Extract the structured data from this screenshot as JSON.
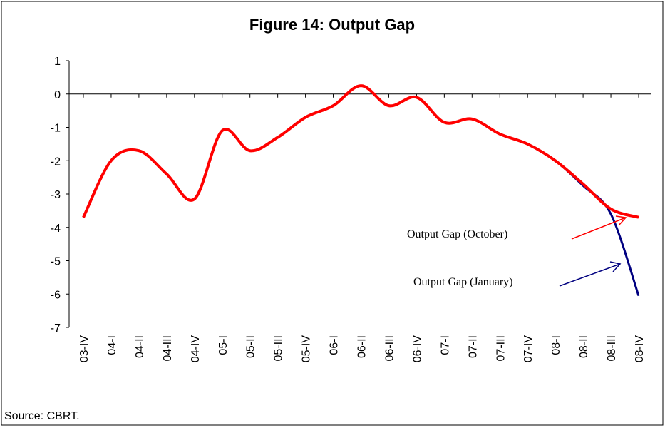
{
  "chart_data": {
    "type": "line",
    "title": "Figure 14: Output Gap",
    "source": "Source: CBRT.",
    "categories": [
      "03-IV",
      "04-I",
      "04-II",
      "04-III",
      "04-IV",
      "05-I",
      "05-II",
      "05-III",
      "05-IV",
      "06-I",
      "06-II",
      "06-III",
      "06-IV",
      "07-I",
      "07-II",
      "07-III",
      "07-IV",
      "08-I",
      "08-II",
      "08-III",
      "08-IV"
    ],
    "series": [
      {
        "name": "Output Gap (January)",
        "color": "#000080",
        "values": [
          -3.7,
          -2.0,
          -1.7,
          -2.4,
          -3.15,
          -1.1,
          -1.7,
          -1.3,
          -0.7,
          -0.35,
          0.25,
          -0.35,
          -0.1,
          -0.85,
          -0.75,
          -1.2,
          -1.5,
          -2.0,
          -2.75,
          -3.6,
          -6.05
        ]
      },
      {
        "name": "Output Gap (October)",
        "color": "#ff0000",
        "values": [
          -3.7,
          -2.0,
          -1.7,
          -2.4,
          -3.15,
          -1.1,
          -1.7,
          -1.3,
          -0.7,
          -0.35,
          0.25,
          -0.35,
          -0.1,
          -0.85,
          -0.75,
          -1.2,
          -1.5,
          -2.0,
          -2.7,
          -3.45,
          -3.7
        ]
      }
    ],
    "ylim": [
      -7,
      1
    ],
    "yticks": [
      -7,
      -6,
      -5,
      -4,
      -3,
      -2,
      -1,
      0,
      1
    ]
  }
}
